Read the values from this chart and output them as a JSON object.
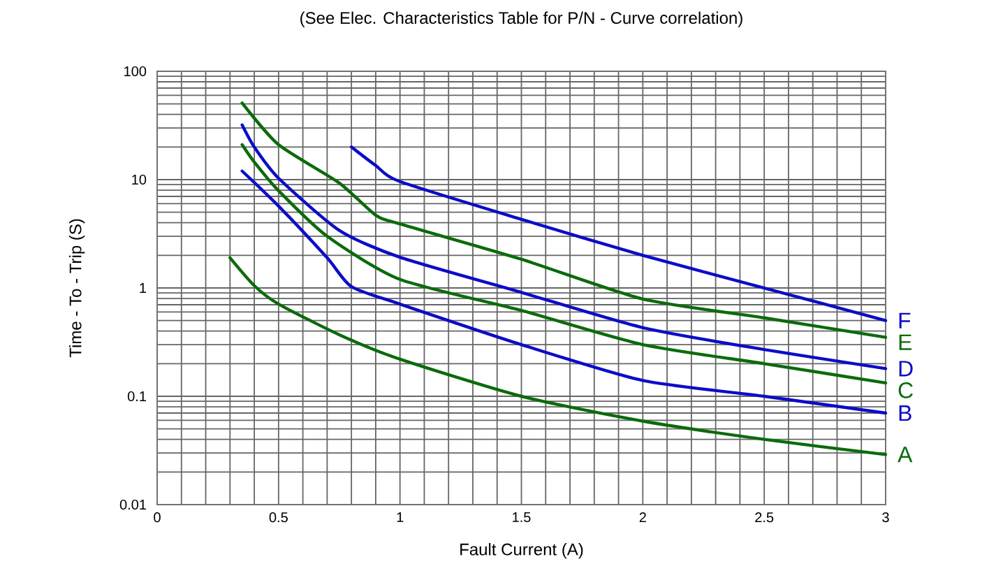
{
  "chart_data": {
    "type": "line",
    "title": "(See Elec. Characteristics Table for P/N - Curve correlation)",
    "xlabel": "Fault Current (A)",
    "ylabel": "Time - To - Trip (S)",
    "log": "y",
    "grid": true,
    "legend": false,
    "marker": "none",
    "line_style": "solid",
    "xlim": [
      0,
      3
    ],
    "ylim": [
      0.01,
      100
    ],
    "xticks": [
      0,
      0.5,
      1,
      1.5,
      2,
      2.5,
      3
    ],
    "yticks": [
      {
        "value": 0.01,
        "label": "0.01"
      },
      {
        "value": 0.1,
        "label": "0.1"
      },
      {
        "value": 1,
        "label": "1"
      },
      {
        "value": 10,
        "label": "10"
      },
      {
        "value": 100,
        "label": "100"
      }
    ],
    "series": [
      {
        "name": "A",
        "color": "#0b6b0b",
        "x": [
          0.3,
          0.4,
          0.5,
          0.75,
          1.0,
          1.5,
          2.0,
          2.5,
          3.0
        ],
        "values": [
          1.9,
          1.05,
          0.71,
          0.37,
          0.22,
          0.1,
          0.059,
          0.04,
          0.029
        ]
      },
      {
        "name": "B",
        "color": "#0c0cc8",
        "x": [
          0.35,
          0.5,
          0.7,
          0.8,
          1.0,
          1.5,
          2.0,
          2.5,
          3.0
        ],
        "values": [
          12,
          5.7,
          1.9,
          1.03,
          0.71,
          0.3,
          0.14,
          0.1,
          0.07
        ]
      },
      {
        "name": "C",
        "color": "#0b6b0b",
        "x": [
          0.35,
          0.4,
          0.5,
          0.7,
          1.0,
          1.5,
          2.0,
          2.5,
          3.0
        ],
        "values": [
          21,
          14.5,
          7.9,
          3.0,
          1.2,
          0.62,
          0.3,
          0.2,
          0.133
        ]
      },
      {
        "name": "D",
        "color": "#0c0cc8",
        "x": [
          0.35,
          0.4,
          0.5,
          0.75,
          1.0,
          1.5,
          2.0,
          2.5,
          3.0
        ],
        "values": [
          32,
          20,
          10.3,
          3.4,
          1.92,
          0.91,
          0.43,
          0.27,
          0.18
        ]
      },
      {
        "name": "E",
        "color": "#0b6b0b",
        "x": [
          0.35,
          0.5,
          0.75,
          0.9,
          1.0,
          1.5,
          2.0,
          2.5,
          3.0
        ],
        "values": [
          51,
          21,
          9.3,
          4.7,
          3.9,
          1.84,
          0.79,
          0.53,
          0.35
        ]
      },
      {
        "name": "F",
        "color": "#0c0cc8",
        "x": [
          0.8,
          0.9,
          1.0,
          1.5,
          2.0,
          2.5,
          3.0
        ],
        "values": [
          20,
          13.5,
          9.6,
          4.3,
          2.0,
          1.0,
          0.5
        ]
      }
    ]
  }
}
